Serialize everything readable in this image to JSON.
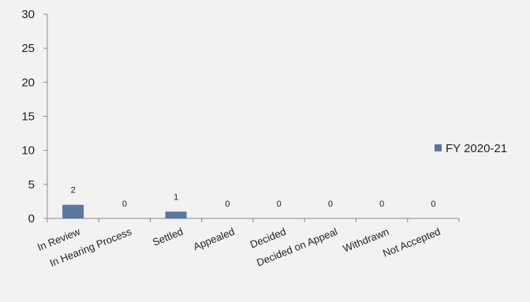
{
  "chart_data": {
    "type": "bar",
    "categories": [
      "In Review",
      "In Hearing Process",
      "Settled",
      "Appealed",
      "Decided",
      "Decided on Appeal",
      "Withdrawn",
      "Not Accepted"
    ],
    "series": [
      {
        "name": "FY 2020-21",
        "values": [
          2,
          0,
          1,
          0,
          0,
          0,
          0,
          0
        ],
        "color": "#5a77a2"
      }
    ],
    "data_labels": [
      "2",
      "0",
      "1",
      "0",
      "0",
      "0",
      "0",
      "0"
    ],
    "ylim": [
      0,
      30
    ],
    "yticks": [
      0,
      5,
      10,
      15,
      20,
      25,
      30
    ],
    "ytick_labels": [
      "0",
      "5",
      "10",
      "15",
      "20",
      "25",
      "30"
    ],
    "grid": false,
    "legend_position": "right",
    "axis_color": "#8c8c8c",
    "background": "#f2f2f2"
  }
}
